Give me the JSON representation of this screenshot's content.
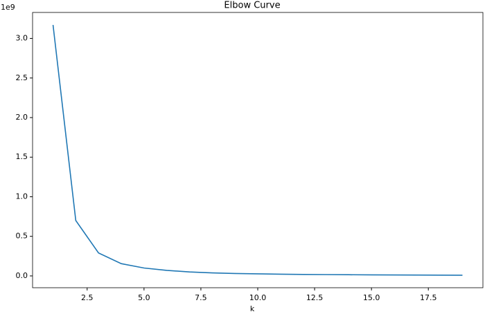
{
  "chart_data": {
    "type": "line",
    "title": "Elbow Curve",
    "x_label": "k",
    "y_offset_label": "1e9",
    "x": [
      1,
      2,
      3,
      4,
      5,
      6,
      7,
      8,
      9,
      10,
      11,
      12,
      13,
      14,
      15,
      16,
      17,
      18,
      19
    ],
    "series": [
      {
        "color": "#1f77b4",
        "values": [
          3.17,
          0.7,
          0.29,
          0.155,
          0.1,
          0.07,
          0.05,
          0.038,
          0.031,
          0.026,
          0.022,
          0.019,
          0.017,
          0.015,
          0.013,
          0.012,
          0.011,
          0.01,
          0.009
        ]
      }
    ],
    "xlim": [
      0.1,
      19.9
    ],
    "ylim": [
      -0.149,
      3.328
    ],
    "xticks": [
      2.5,
      {
        "value": 5,
        "label": "5.0"
      },
      7.5,
      {
        "value": 10,
        "label": "10.0"
      },
      12.5,
      {
        "value": 15,
        "label": "15.0"
      },
      17.5
    ],
    "yticks": [
      {
        "value": 0,
        "label": "0.0"
      },
      0.5,
      {
        "value": 1,
        "label": "1.0"
      },
      1.5,
      {
        "value": 2,
        "label": "2.0"
      },
      2.5,
      {
        "value": 3,
        "label": "3.0"
      }
    ]
  }
}
